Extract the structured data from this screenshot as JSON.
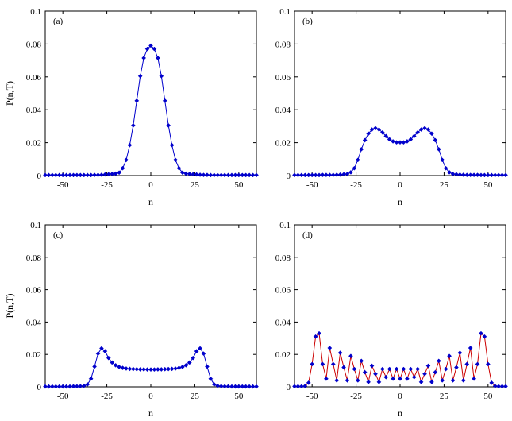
{
  "chart_data": [
    {
      "type": "line",
      "panel_label": "(a)",
      "xlabel": "n",
      "ylabel": "P(n,T)",
      "xlim": [
        -60,
        60
      ],
      "ylim": [
        0,
        0.1
      ],
      "xticks": [
        "-50",
        "-25",
        "0",
        "25",
        "50"
      ],
      "yticks": [
        "0",
        "0.02",
        "0.04",
        "0.06",
        "0.08",
        "0.1"
      ],
      "grid": false,
      "colors": {
        "marker": "#0000cc",
        "line": "#0000cc"
      },
      "series": [
        {
          "marker": "diamond",
          "x": [
            -60,
            -58,
            -56,
            -54,
            -52,
            -50,
            -48,
            -46,
            -44,
            -42,
            -40,
            -38,
            -36,
            -34,
            -32,
            -30,
            -28,
            -26,
            -24,
            -22,
            -20,
            -18,
            -16,
            -14,
            -12,
            -10,
            -8,
            -6,
            -4,
            -2,
            0,
            2,
            4,
            6,
            8,
            10,
            12,
            14,
            16,
            18,
            20,
            22,
            24,
            26,
            28,
            30,
            32,
            34,
            36,
            38,
            40,
            42,
            44,
            46,
            48,
            50,
            52,
            54,
            56,
            58,
            60
          ],
          "y": [
            0.0003,
            0.0003,
            0.0003,
            0.0003,
            0.0003,
            0.0003,
            0.0003,
            0.0003,
            0.0003,
            0.0003,
            0.0003,
            0.0003,
            0.0003,
            0.0003,
            0.0004,
            0.0004,
            0.0005,
            0.0007,
            0.0008,
            0.001,
            0.0012,
            0.0018,
            0.0045,
            0.0095,
            0.0185,
            0.0305,
            0.0455,
            0.0605,
            0.0715,
            0.077,
            0.079,
            0.077,
            0.0715,
            0.0605,
            0.0455,
            0.0305,
            0.0185,
            0.0095,
            0.0045,
            0.0018,
            0.0012,
            0.001,
            0.0008,
            0.0007,
            0.0005,
            0.0004,
            0.0004,
            0.0003,
            0.0003,
            0.0003,
            0.0003,
            0.0003,
            0.0003,
            0.0003,
            0.0003,
            0.0003,
            0.0003,
            0.0003,
            0.0003,
            0.0003,
            0.0003
          ]
        }
      ]
    },
    {
      "type": "line",
      "panel_label": "(b)",
      "xlabel": "n",
      "ylabel": "",
      "xlim": [
        -60,
        60
      ],
      "ylim": [
        0,
        0.1
      ],
      "xticks": [
        "-50",
        "-25",
        "0",
        "25",
        "50"
      ],
      "yticks": [
        "0",
        "0.02",
        "0.04",
        "0.06",
        "0.08",
        "0.1"
      ],
      "grid": false,
      "colors": {
        "marker": "#0000cc",
        "line": "#0000cc"
      },
      "series": [
        {
          "marker": "diamond",
          "x": [
            -60,
            -58,
            -56,
            -54,
            -52,
            -50,
            -48,
            -46,
            -44,
            -42,
            -40,
            -38,
            -36,
            -34,
            -32,
            -30,
            -28,
            -26,
            -24,
            -22,
            -20,
            -18,
            -16,
            -14,
            -12,
            -10,
            -8,
            -6,
            -4,
            -2,
            0,
            2,
            4,
            6,
            8,
            10,
            12,
            14,
            16,
            18,
            20,
            22,
            24,
            26,
            28,
            30,
            32,
            34,
            36,
            38,
            40,
            42,
            44,
            46,
            48,
            50,
            52,
            54,
            56,
            58,
            60
          ],
          "y": [
            0.0003,
            0.0003,
            0.0003,
            0.0003,
            0.0003,
            0.0003,
            0.0003,
            0.0003,
            0.0004,
            0.0004,
            0.0004,
            0.0004,
            0.0005,
            0.0006,
            0.0008,
            0.001,
            0.002,
            0.0045,
            0.0095,
            0.016,
            0.0215,
            0.0255,
            0.028,
            0.0288,
            0.028,
            0.0262,
            0.024,
            0.022,
            0.0208,
            0.0202,
            0.0202,
            0.0202,
            0.0208,
            0.022,
            0.024,
            0.0262,
            0.028,
            0.0288,
            0.028,
            0.0255,
            0.0215,
            0.016,
            0.0095,
            0.0045,
            0.002,
            0.001,
            0.0008,
            0.0006,
            0.0005,
            0.0004,
            0.0004,
            0.0004,
            0.0004,
            0.0003,
            0.0003,
            0.0003,
            0.0003,
            0.0003,
            0.0003,
            0.0003,
            0.0003
          ]
        }
      ]
    },
    {
      "type": "line",
      "panel_label": "(c)",
      "xlabel": "n",
      "ylabel": "P(n,T)",
      "xlim": [
        -60,
        60
      ],
      "ylim": [
        0,
        0.1
      ],
      "xticks": [
        "-50",
        "-25",
        "0",
        "25",
        "50"
      ],
      "yticks": [
        "0",
        "0.02",
        "0.04",
        "0.06",
        "0.08",
        "0.1"
      ],
      "grid": false,
      "colors": {
        "marker": "#0000cc",
        "line": "#0000cc"
      },
      "series": [
        {
          "marker": "diamond",
          "x": [
            -60,
            -58,
            -56,
            -54,
            -52,
            -50,
            -48,
            -46,
            -44,
            -42,
            -40,
            -38,
            -36,
            -34,
            -32,
            -30,
            -28,
            -26,
            -24,
            -22,
            -20,
            -18,
            -16,
            -14,
            -12,
            -10,
            -8,
            -6,
            -4,
            -2,
            0,
            2,
            4,
            6,
            8,
            10,
            12,
            14,
            16,
            18,
            20,
            22,
            24,
            26,
            28,
            30,
            32,
            34,
            36,
            38,
            40,
            42,
            44,
            46,
            48,
            50,
            52,
            54,
            56,
            58,
            60
          ],
          "y": [
            0.0002,
            0.0002,
            0.0002,
            0.0002,
            0.0002,
            0.0002,
            0.0002,
            0.0002,
            0.0003,
            0.0003,
            0.0004,
            0.0006,
            0.0015,
            0.005,
            0.0125,
            0.0205,
            0.0238,
            0.022,
            0.0178,
            0.015,
            0.0133,
            0.0123,
            0.0117,
            0.0113,
            0.0111,
            0.011,
            0.0109,
            0.0108,
            0.0108,
            0.0107,
            0.0107,
            0.0107,
            0.0108,
            0.0108,
            0.0109,
            0.011,
            0.0111,
            0.0113,
            0.0117,
            0.0123,
            0.0133,
            0.015,
            0.0178,
            0.022,
            0.0238,
            0.0205,
            0.0125,
            0.005,
            0.0015,
            0.0006,
            0.0004,
            0.0003,
            0.0003,
            0.0002,
            0.0002,
            0.0002,
            0.0002,
            0.0002,
            0.0002,
            0.0002,
            0.0002
          ]
        }
      ]
    },
    {
      "type": "line",
      "panel_label": "(d)",
      "xlabel": "n",
      "ylabel": "",
      "xlim": [
        -60,
        60
      ],
      "ylim": [
        0,
        0.1
      ],
      "xticks": [
        "-50",
        "-25",
        "0",
        "25",
        "50"
      ],
      "yticks": [
        "0",
        "0.02",
        "0.04",
        "0.06",
        "0.08",
        "0.1"
      ],
      "grid": false,
      "colors": {
        "marker": "#0000cc",
        "line": "#cc0000"
      },
      "series": [
        {
          "marker": "diamond",
          "x": [
            -60,
            -58,
            -56,
            -54,
            -52,
            -50,
            -48,
            -46,
            -44,
            -42,
            -40,
            -38,
            -36,
            -34,
            -32,
            -30,
            -28,
            -26,
            -24,
            -22,
            -20,
            -18,
            -16,
            -14,
            -12,
            -10,
            -8,
            -6,
            -4,
            -2,
            0,
            2,
            4,
            6,
            8,
            10,
            12,
            14,
            16,
            18,
            20,
            22,
            24,
            26,
            28,
            30,
            32,
            34,
            36,
            38,
            40,
            42,
            44,
            46,
            48,
            50,
            52,
            54,
            56,
            58,
            60
          ],
          "y": [
            0.0003,
            0.0003,
            0.0003,
            0.0005,
            0.0025,
            0.014,
            0.031,
            0.033,
            0.014,
            0.005,
            0.024,
            0.014,
            0.004,
            0.021,
            0.012,
            0.004,
            0.019,
            0.011,
            0.004,
            0.016,
            0.009,
            0.003,
            0.013,
            0.008,
            0.003,
            0.011,
            0.006,
            0.011,
            0.005,
            0.011,
            0.005,
            0.011,
            0.005,
            0.011,
            0.006,
            0.011,
            0.003,
            0.008,
            0.013,
            0.003,
            0.009,
            0.016,
            0.004,
            0.011,
            0.019,
            0.004,
            0.012,
            0.021,
            0.004,
            0.014,
            0.024,
            0.005,
            0.014,
            0.033,
            0.031,
            0.014,
            0.0025,
            0.0005,
            0.0003,
            0.0003,
            0.0003
          ]
        }
      ]
    }
  ]
}
